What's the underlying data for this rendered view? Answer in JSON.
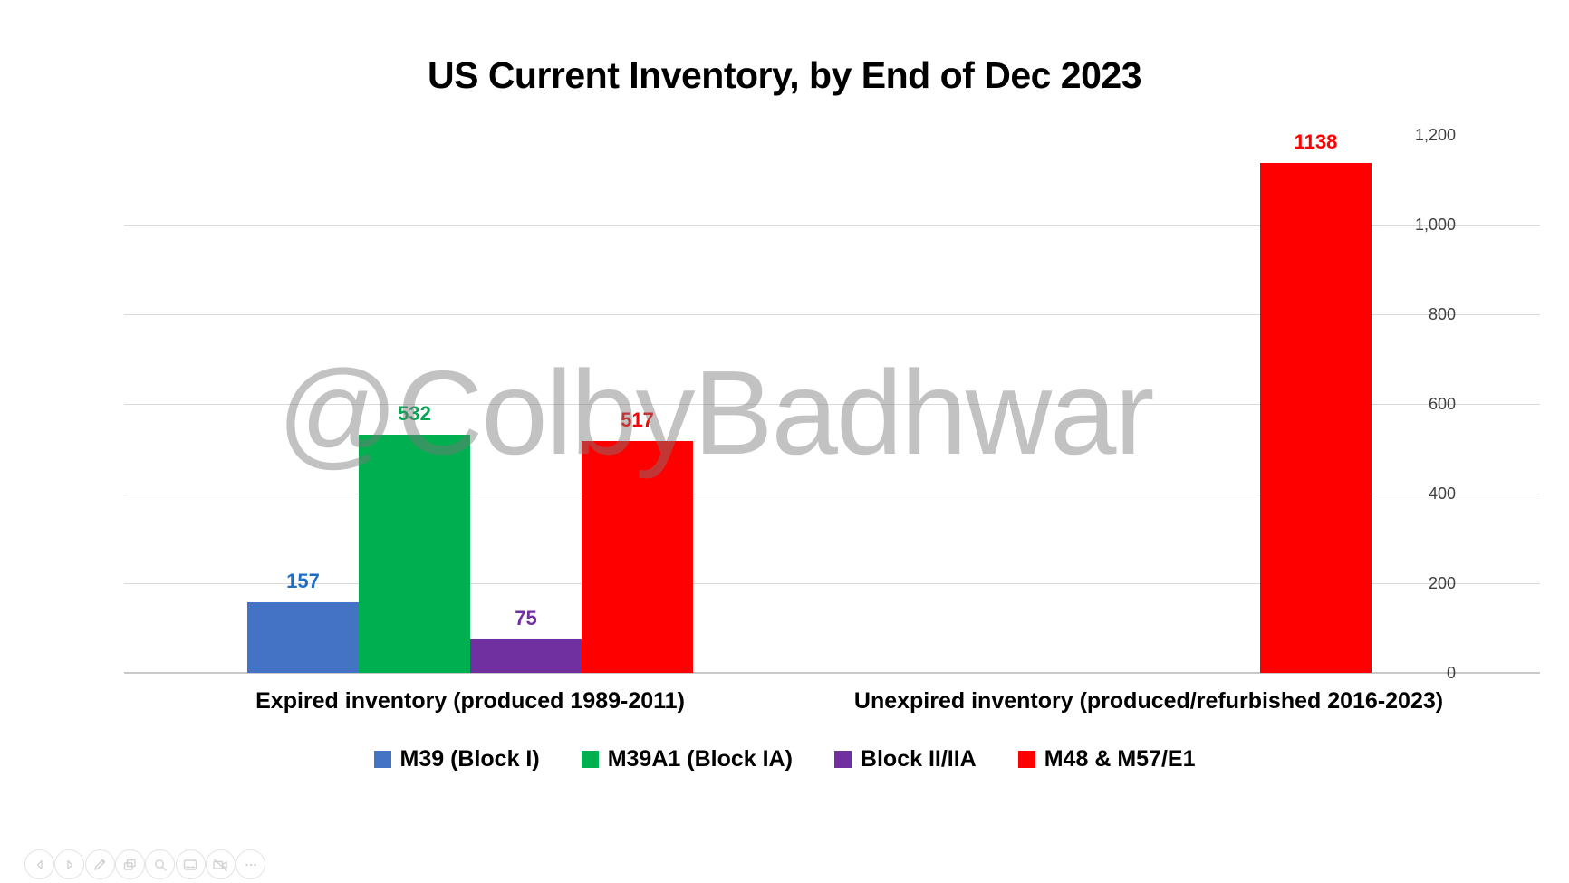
{
  "title": "US Current Inventory, by End of Dec 2023",
  "watermark": "@ColbyBadhwar",
  "chart_data": {
    "type": "bar",
    "title": "US Current Inventory, by End of Dec 2023",
    "categories": [
      "Expired inventory (produced 1989-2011)",
      "Unexpired inventory (produced/refurbished 2016-2023)"
    ],
    "series": [
      {
        "name": "M39 (Block I)",
        "color": "#4472C4",
        "label_color": "#1F6FC4",
        "values": [
          157,
          null
        ]
      },
      {
        "name": "M39A1 (Block IA)",
        "color": "#00B050",
        "label_color": "#00A651",
        "values": [
          532,
          null
        ]
      },
      {
        "name": "Block II/IIA",
        "color": "#7030A0",
        "label_color": "#7030A0",
        "values": [
          75,
          null
        ]
      },
      {
        "name": "M48 & M57/E1",
        "color": "#FF0000",
        "label_color": "#FF0000",
        "values": [
          517,
          1138
        ]
      }
    ],
    "ylim": [
      0,
      1200
    ],
    "yticks": [
      0,
      200,
      400,
      600,
      800,
      1000,
      1200
    ],
    "grid": "horizontal-gridlines-on",
    "legend_position": "bottom",
    "data_labels": "above-bars, colored to match series"
  },
  "toolbar": {
    "icons": [
      "previous-icon",
      "next-icon",
      "edit-icon",
      "photos-icon",
      "magnifier-icon",
      "card-icon",
      "video-off-icon",
      "more-icon"
    ]
  }
}
